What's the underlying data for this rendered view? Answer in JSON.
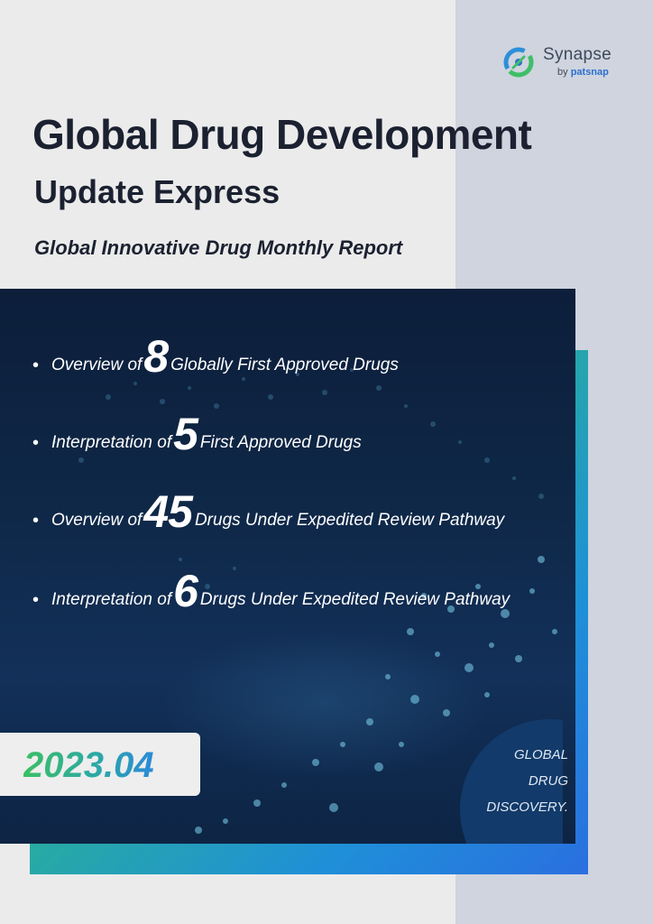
{
  "brand": {
    "name": "Synapse",
    "sub_prefix": "by",
    "sub_name": "patsnap",
    "colors": {
      "green": "#3fbf68",
      "blue": "#2d6fd0"
    }
  },
  "cover": {
    "title_line1": "Global Drug Development",
    "title_line2": "Update Express",
    "subtitle": "Global Innovative Drug Monthly Report"
  },
  "highlights": [
    {
      "pre": "Overview of",
      "number": "8",
      "post": "Globally First Approved Drugs"
    },
    {
      "pre": "Interpretation of",
      "number": "5",
      "post": "First Approved Drugs"
    },
    {
      "pre": "Overview of",
      "number": "45",
      "post": "Drugs Under Expedited Review Pathway"
    },
    {
      "pre": "Interpretation of",
      "number": "6",
      "post": "Drugs Under Expedited Review Pathway"
    }
  ],
  "bullet_symbol": "•",
  "issue_date": "2023.04",
  "badge": {
    "lines": [
      "GLOBAL",
      "DRUG",
      "DISCOVERY."
    ]
  },
  "accent_colors": {
    "gradient_start": "#46c46a",
    "gradient_end": "#2a6fe0",
    "title": "#1b2130"
  }
}
